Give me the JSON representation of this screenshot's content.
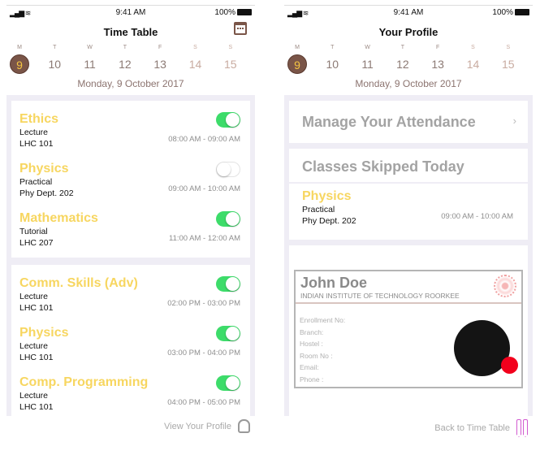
{
  "status": {
    "time": "9:41 AM",
    "battery": "100%"
  },
  "week": {
    "days": [
      {
        "l": "M",
        "n": "9"
      },
      {
        "l": "T",
        "n": "10"
      },
      {
        "l": "W",
        "n": "11"
      },
      {
        "l": "T",
        "n": "12"
      },
      {
        "l": "F",
        "n": "13"
      },
      {
        "l": "S",
        "n": "14"
      },
      {
        "l": "S",
        "n": "15"
      }
    ],
    "selected": "9",
    "date": "Monday, 9 October 2017"
  },
  "left": {
    "title": "Time Table",
    "footer": "View Your Profile",
    "card1": [
      {
        "name": "Ethics",
        "type": "Lecture",
        "room": "LHC 101",
        "time": "08:00 AM - 09:00 AM",
        "on": true
      },
      {
        "name": "Physics",
        "type": "Practical",
        "room": "Phy Dept. 202",
        "time": "09:00 AM - 10:00 AM",
        "on": false
      },
      {
        "name": "Mathematics",
        "type": "Tutorial",
        "room": "LHC 207",
        "time": "11:00 AM - 12:00 AM",
        "on": true
      }
    ],
    "card2": [
      {
        "name": "Comm. Skills (Adv)",
        "type": "Lecture",
        "room": "LHC 101",
        "time": "02:00 PM - 03:00 PM",
        "on": true
      },
      {
        "name": "Physics",
        "type": "Lecture",
        "room": "LHC 101",
        "time": "03:00 PM - 04:00 PM",
        "on": true
      },
      {
        "name": "Comp. Programming",
        "type": "Lecture",
        "room": "LHC 101",
        "time": "04:00 PM - 05:00 PM",
        "on": true
      }
    ]
  },
  "right": {
    "title": "Your Profile",
    "attendance": "Manage Your Attendance",
    "skipped_title": "Classes Skipped Today",
    "skipped": {
      "name": "Physics",
      "type": "Practical",
      "room": "Phy Dept. 202",
      "time": "09:00 AM - 10:00 AM"
    },
    "id": {
      "name": "John Doe",
      "institute": "INDIAN INSTITUTE OF TECHNOLOGY ROORKEE",
      "fields": [
        "Enrollment No:",
        "Branch:",
        "Hostel :",
        "Room No :",
        "Email:",
        "Phone :"
      ]
    },
    "footer": "Back to Time Table"
  },
  "colors": {
    "accent": "#7a5548",
    "subject": "#f7d660",
    "toggle_on": "#3ddc6a"
  }
}
